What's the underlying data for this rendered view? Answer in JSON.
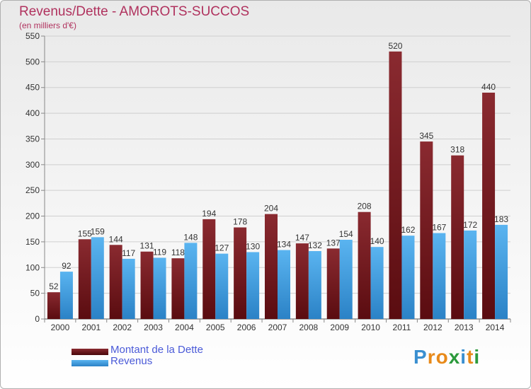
{
  "chart_data": {
    "type": "bar",
    "title": "Revenus/Dette - AMOROTS-SUCCOS",
    "subtitle": "(en milliers d'€)",
    "categories": [
      "2000",
      "2001",
      "2002",
      "2003",
      "2004",
      "2005",
      "2006",
      "2007",
      "2008",
      "2009",
      "2010",
      "2011",
      "2012",
      "2013",
      "2014"
    ],
    "series": [
      {
        "name": "Montant de la Dette",
        "values": [
          52,
          155,
          144,
          131,
          118,
          194,
          178,
          204,
          147,
          137,
          208,
          520,
          345,
          318,
          440
        ],
        "color": "#7a1a1f"
      },
      {
        "name": "Revenus",
        "values": [
          92,
          159,
          117,
          119,
          148,
          127,
          130,
          134,
          132,
          154,
          140,
          162,
          167,
          172,
          183
        ],
        "color": "#3fa0e6"
      }
    ],
    "ylim": [
      0,
      550
    ],
    "yticks": [
      0,
      50,
      100,
      150,
      200,
      250,
      300,
      350,
      400,
      450,
      500,
      550
    ],
    "grid": true,
    "legend": "bottom-left"
  },
  "logo": {
    "text": "Proxiti",
    "letters": [
      "P",
      "r",
      "o",
      "x",
      "i",
      "t",
      "i"
    ],
    "colors": [
      "#3a8fd0",
      "#e88a1a",
      "#e88a1a",
      "#2c9a3c",
      "#3a8fd0",
      "#e88a1a",
      "#2c9a3c"
    ]
  }
}
